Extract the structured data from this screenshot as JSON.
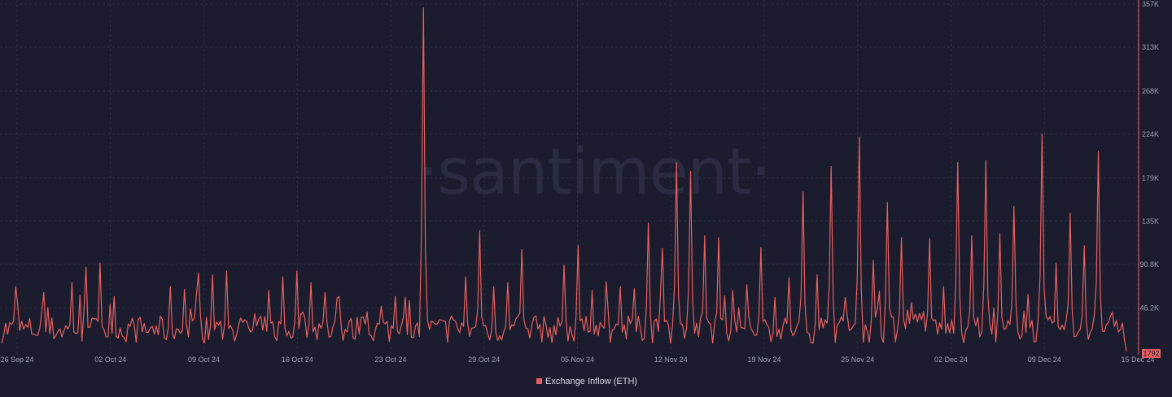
{
  "watermark": "·santiment·",
  "colors": {
    "background": "#1b1d2e",
    "series": "#e8605f",
    "grid": "#2c2f45",
    "axis_text": "#9aa0b4"
  },
  "chart_data": {
    "type": "line",
    "title": "",
    "xlabel": "",
    "ylabel": "",
    "x_ticks": [
      "26 Sep 24",
      "02 Oct 24",
      "09 Oct 24",
      "16 Oct 24",
      "23 Oct 24",
      "29 Oct 24",
      "05 Nov 24",
      "12 Nov 24",
      "19 Nov 24",
      "25 Nov 24",
      "02 Dec 24",
      "09 Dec 24",
      "15 Dec 24"
    ],
    "y_ticks": [
      "46.2K",
      "90.8K",
      "135K",
      "179K",
      "224K",
      "268K",
      "313K",
      "357K"
    ],
    "y_tick_values": [
      46200,
      90800,
      135000,
      179000,
      224000,
      268000,
      313000,
      357000
    ],
    "ylim": [
      0,
      357000
    ],
    "x_range": [
      "2024-09-26",
      "2024-12-15"
    ],
    "grid": true,
    "y_axis_side": "right",
    "legend_position": "bottom-center",
    "last_value_label": "1792",
    "series": [
      {
        "name": "Exchange Inflow (ETH)",
        "frequency": "hourly",
        "peaks": [
          [
            "2024-09-27",
            68000
          ],
          [
            "2024-09-29",
            62000
          ],
          [
            "2024-10-01",
            72000
          ],
          [
            "2024-10-02",
            88000
          ],
          [
            "2024-10-03",
            92000
          ],
          [
            "2024-10-04",
            58000
          ],
          [
            "2024-10-07",
            28000
          ],
          [
            "2024-10-08",
            68000
          ],
          [
            "2024-10-09",
            65000
          ],
          [
            "2024-10-10",
            82000
          ],
          [
            "2024-10-11",
            80000
          ],
          [
            "2024-10-12",
            84000
          ],
          [
            "2024-10-14",
            40000
          ],
          [
            "2024-10-15",
            64000
          ],
          [
            "2024-10-16",
            78000
          ],
          [
            "2024-10-17",
            84000
          ],
          [
            "2024-10-18",
            72000
          ],
          [
            "2024-10-19",
            62000
          ],
          [
            "2024-10-20",
            58000
          ],
          [
            "2024-10-22",
            42000
          ],
          [
            "2024-10-23",
            48000
          ],
          [
            "2024-10-24",
            58000
          ],
          [
            "2024-10-25",
            54000
          ],
          [
            "2024-10-26",
            353000
          ],
          [
            "2024-10-27",
            28000
          ],
          [
            "2024-10-28",
            38000
          ],
          [
            "2024-10-29",
            78000
          ],
          [
            "2024-10-30",
            125000
          ],
          [
            "2024-10-31",
            68000
          ],
          [
            "2024-11-01",
            72000
          ],
          [
            "2024-11-02",
            106000
          ],
          [
            "2024-11-03",
            38000
          ],
          [
            "2024-11-05",
            90000
          ],
          [
            "2024-11-06",
            110000
          ],
          [
            "2024-11-07",
            64000
          ],
          [
            "2024-11-08",
            73000
          ],
          [
            "2024-11-09",
            68000
          ],
          [
            "2024-11-10",
            66000
          ],
          [
            "2024-11-11",
            133000
          ],
          [
            "2024-11-12",
            107000
          ],
          [
            "2024-11-13",
            195000
          ],
          [
            "2024-11-14",
            186000
          ],
          [
            "2024-11-15",
            120000
          ],
          [
            "2024-11-16",
            118000
          ],
          [
            "2024-11-17",
            64000
          ],
          [
            "2024-11-18",
            70000
          ],
          [
            "2024-11-19",
            108000
          ],
          [
            "2024-11-20",
            57000
          ],
          [
            "2024-11-21",
            77000
          ],
          [
            "2024-11-22",
            165000
          ],
          [
            "2024-11-23",
            80000
          ],
          [
            "2024-11-24",
            191000
          ],
          [
            "2024-11-25",
            57000
          ],
          [
            "2024-11-26",
            221000
          ],
          [
            "2024-11-27",
            95000
          ],
          [
            "2024-11-28",
            154000
          ],
          [
            "2024-11-29",
            118000
          ],
          [
            "2024-11-30",
            40000
          ],
          [
            "2024-12-01",
            117000
          ],
          [
            "2024-12-02",
            68000
          ],
          [
            "2024-12-03",
            195000
          ],
          [
            "2024-12-04",
            120000
          ],
          [
            "2024-12-05",
            197000
          ],
          [
            "2024-12-06",
            122000
          ],
          [
            "2024-12-07",
            150000
          ],
          [
            "2024-12-08",
            60000
          ],
          [
            "2024-12-09",
            224000
          ],
          [
            "2024-12-10",
            92000
          ],
          [
            "2024-12-11",
            143000
          ],
          [
            "2024-12-12",
            110000
          ],
          [
            "2024-12-13",
            206000
          ],
          [
            "2024-12-14",
            42000
          ],
          [
            "2024-12-15",
            1792
          ]
        ]
      }
    ]
  }
}
